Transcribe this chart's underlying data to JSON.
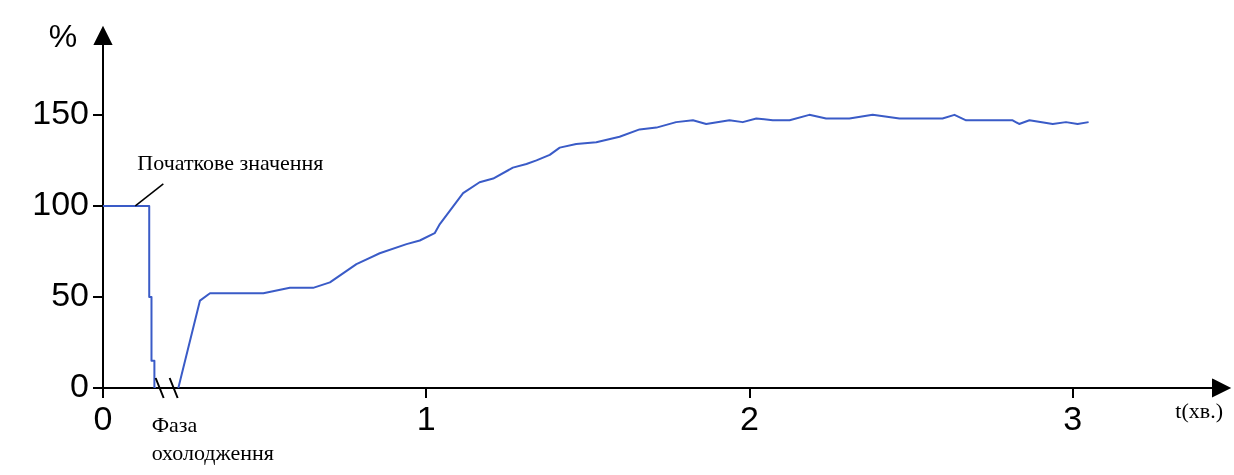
{
  "chart_data": {
    "type": "line",
    "xlabel": "t(хв.)",
    "ylabel": "%",
    "xlim": [
      0,
      3.44
    ],
    "ylim": [
      0,
      190
    ],
    "xticks": [
      0,
      1,
      2,
      3
    ],
    "yticks": [
      0,
      50,
      100,
      150
    ],
    "grid": false,
    "legend": false,
    "marker": "none",
    "line_style": "solid",
    "annotations": [
      {
        "text": "Початкове значення",
        "x": 0.1,
        "y": 100
      },
      "Фаза\nохолодження"
    ],
    "series": [
      {
        "color": "#3a5bc7",
        "x": [
          0,
          0.143,
          0.143,
          0.15,
          0.15,
          0.159,
          0.159,
          0.164,
          0.2,
          0.233,
          0.3,
          0.331,
          0.424,
          0.496,
          0.578,
          0.65,
          0.702,
          0.784,
          0.856,
          0.939,
          0.98,
          1.026,
          1.042,
          1.114,
          1.165,
          1.207,
          1.268,
          1.31,
          1.341,
          1.382,
          1.413,
          1.464,
          1.526,
          1.598,
          1.66,
          1.712,
          1.773,
          1.825,
          1.866,
          1.938,
          1.979,
          2.021,
          2.072,
          2.124,
          2.185,
          2.237,
          2.309,
          2.381,
          2.464,
          2.597,
          2.634,
          2.67,
          2.814,
          2.834,
          2.866,
          2.938,
          2.979,
          3.015,
          3.049
        ],
        "values": [
          100,
          100,
          50,
          50,
          15,
          15,
          0,
          0,
          null,
          0,
          48,
          52,
          52,
          52,
          55,
          55,
          58,
          68,
          74,
          79,
          81,
          85,
          90,
          107,
          113,
          115,
          121,
          123,
          125,
          128,
          132,
          134,
          135,
          138,
          142,
          143,
          146,
          147,
          145,
          147,
          146,
          148,
          147,
          147,
          150,
          148,
          148,
          150,
          148,
          148,
          150,
          147,
          147,
          145,
          147,
          145,
          146,
          145,
          146
        ]
      }
    ]
  }
}
